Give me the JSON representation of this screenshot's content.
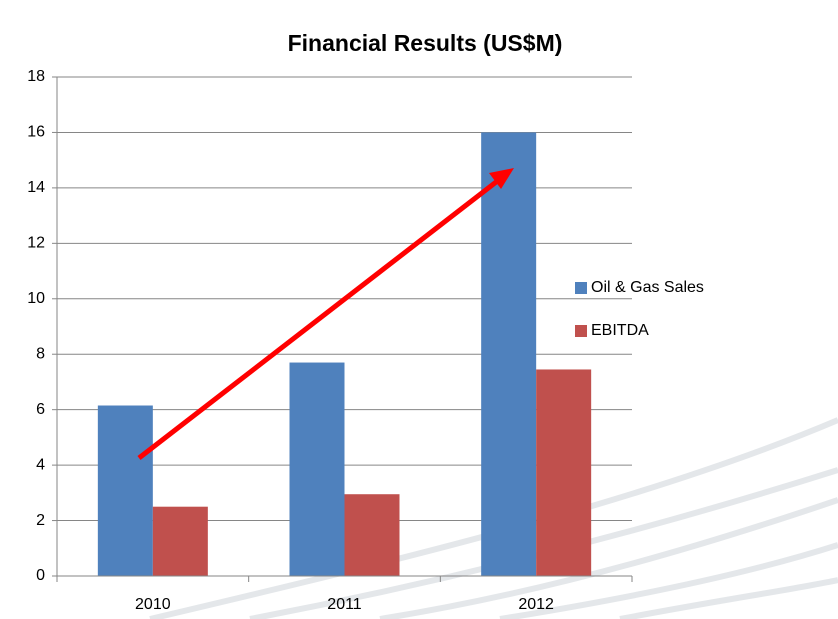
{
  "chart_data": {
    "type": "bar",
    "title": "Financial Results (US$M)",
    "categories": [
      "2010",
      "2011",
      "2012"
    ],
    "series": [
      {
        "name": "Oil & Gas Sales",
        "color": "#4f81bd",
        "values": [
          6.15,
          7.7,
          16.0
        ]
      },
      {
        "name": "EBITDA",
        "color": "#c0504d",
        "values": [
          2.5,
          2.95,
          7.45
        ]
      }
    ],
    "ylim": [
      0,
      18
    ],
    "yticks": [
      0,
      2,
      4,
      6,
      8,
      10,
      12,
      14,
      16,
      18
    ],
    "grid": true,
    "legend": "right"
  }
}
